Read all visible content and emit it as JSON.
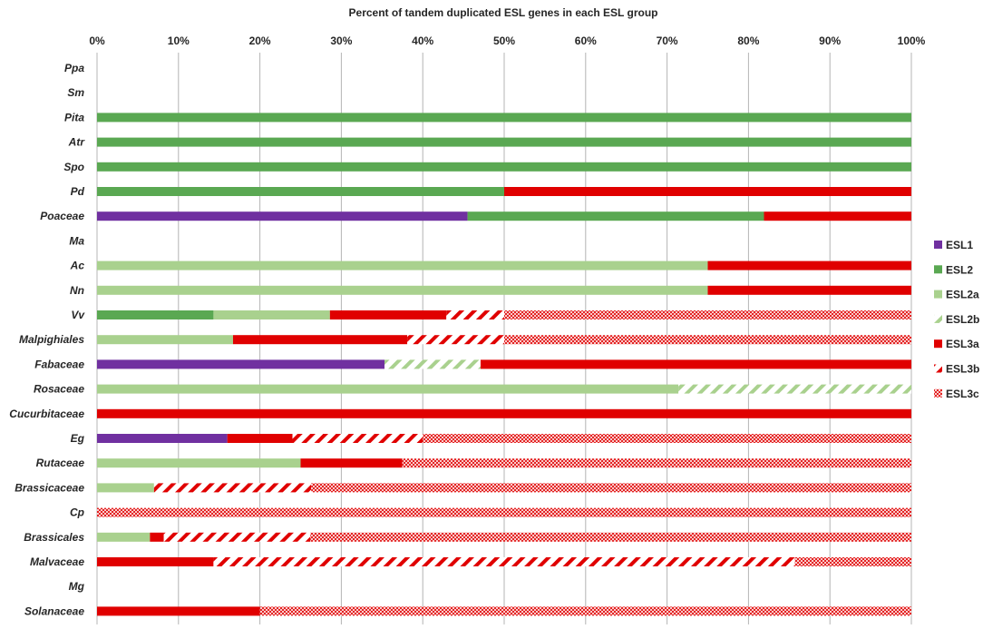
{
  "chart_data": {
    "type": "bar",
    "orientation": "horizontal-stacked-100",
    "title": "Percent of tandem duplicated ESL genes in each ESL group",
    "xlabel": "",
    "ylabel": "",
    "xlim": [
      0,
      100
    ],
    "x_ticks": [
      "0%",
      "10%",
      "20%",
      "30%",
      "40%",
      "50%",
      "60%",
      "70%",
      "80%",
      "90%",
      "100%"
    ],
    "grid": "vertical",
    "legend_position": "right",
    "categories": [
      "Ppa",
      "Sm",
      "Pita",
      "Atr",
      "Spo",
      "Pd",
      "Poaceae",
      "Ma",
      "Ac",
      "Nn",
      "Vv",
      "Malpighiales",
      "Fabaceae",
      "Rosaceae",
      "Cucurbitaceae",
      "Eg",
      "Rutaceae",
      "Brassicaceae",
      "Cp",
      "Brassicales",
      "Malvaceae",
      "Mg",
      "Solanaceae"
    ],
    "series": [
      {
        "name": "ESL1",
        "color": "#7030a0",
        "pattern": "solid",
        "values": [
          0,
          0,
          0,
          0,
          0,
          0,
          45.5,
          0,
          0,
          0,
          0,
          0,
          35.3,
          0,
          0,
          16,
          0,
          0,
          0,
          0,
          0,
          0,
          0
        ]
      },
      {
        "name": "ESL2",
        "color": "#5aa852",
        "pattern": "solid",
        "values": [
          0,
          0,
          100,
          100,
          100,
          50,
          36.4,
          0,
          0,
          0,
          14.3,
          0,
          0,
          0,
          0,
          0,
          0,
          0,
          0,
          0,
          0,
          0,
          0
        ]
      },
      {
        "name": "ESL2a",
        "color": "#a9d18e",
        "pattern": "solid",
        "values": [
          0,
          0,
          0,
          0,
          0,
          0,
          0,
          0,
          75,
          75,
          14.3,
          16.7,
          0,
          71.4,
          0,
          0,
          25,
          7,
          0,
          6.5,
          0,
          0,
          0
        ]
      },
      {
        "name": "ESL2b",
        "color": "#a9d18e",
        "pattern": "diagonal",
        "values": [
          0,
          0,
          0,
          0,
          0,
          0,
          0,
          0,
          0,
          0,
          0,
          0,
          11.8,
          28.6,
          0,
          0,
          0,
          0,
          0,
          0,
          0,
          0,
          0
        ]
      },
      {
        "name": "ESL3a",
        "color": "#e00000",
        "pattern": "solid",
        "values": [
          0,
          0,
          0,
          0,
          0,
          50,
          18.1,
          0,
          25,
          25,
          14.3,
          21.4,
          52.9,
          0,
          100,
          8,
          12.5,
          0,
          0,
          1.7,
          14.3,
          0,
          20
        ]
      },
      {
        "name": "ESL3b",
        "color": "#e00000",
        "pattern": "diagonal",
        "values": [
          0,
          0,
          0,
          0,
          0,
          0,
          0,
          0,
          0,
          0,
          7.1,
          11.9,
          0,
          0,
          0,
          16,
          0,
          19.3,
          0,
          18,
          71.4,
          0,
          0
        ]
      },
      {
        "name": "ESL3c",
        "color": "#e00000",
        "pattern": "crosshatch",
        "values": [
          0,
          0,
          0,
          0,
          0,
          0,
          0,
          0,
          0,
          0,
          50,
          50,
          0,
          0,
          0,
          60,
          62.5,
          73.7,
          100,
          73.8,
          14.3,
          0,
          80
        ]
      }
    ]
  }
}
